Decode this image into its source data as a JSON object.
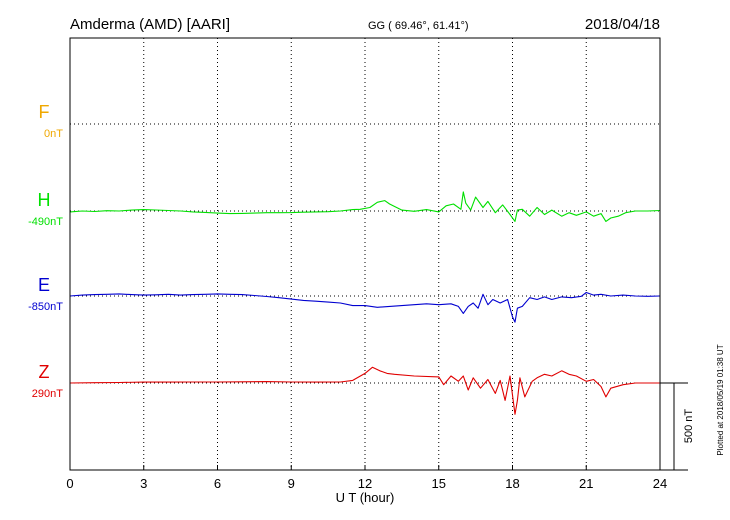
{
  "header": {
    "station": "Amderma (AMD)  [AARI]",
    "coords": "GG ( 69.46°,  61.41°)",
    "date": "2018/04/18"
  },
  "side_note": "Plotted at 2018/05/19 01:38 UT",
  "scale_bar_label": "500 nT",
  "colors": {
    "F": "#f0a800",
    "H": "#00e000",
    "E": "#0000d0",
    "Z": "#e00000",
    "grid": "#000000"
  },
  "chart_data": {
    "type": "line",
    "xlabel": "U T (hour)",
    "xlim": [
      0,
      24
    ],
    "xticks": [
      0,
      3,
      6,
      9,
      12,
      15,
      18,
      21,
      24
    ],
    "scale_nT": 500,
    "series": [
      {
        "name": "F",
        "baseline_label": "0nT",
        "has_data": false,
        "x": [],
        "y": []
      },
      {
        "name": "H",
        "baseline_label": "-490nT",
        "has_data": true,
        "x": [
          0,
          0.5,
          1,
          1.5,
          2,
          2.5,
          3,
          3.5,
          4,
          4.5,
          5,
          5.5,
          6,
          6.5,
          7,
          7.5,
          8,
          8.5,
          9,
          9.5,
          10,
          10.5,
          11,
          11.5,
          11.8,
          12.2,
          12.5,
          12.8,
          13,
          13.5,
          14,
          14.5,
          15,
          15.3,
          15.6,
          15.9,
          16,
          16.1,
          16.3,
          16.5,
          16.8,
          17,
          17.3,
          17.6,
          17.9,
          18.1,
          18.2,
          18.4,
          18.7,
          19,
          19.3,
          19.6,
          20,
          20.3,
          20.6,
          21,
          21.3,
          21.6,
          21.8,
          22,
          22.3,
          22.6,
          23,
          23.5,
          24
        ],
        "y": [
          -5,
          0,
          -3,
          2,
          0,
          5,
          8,
          6,
          3,
          0,
          -5,
          -8,
          -12,
          -15,
          -14,
          -12,
          -10,
          -10,
          -9,
          -7,
          -5,
          -4,
          0,
          8,
          10,
          20,
          50,
          60,
          40,
          5,
          -2,
          8,
          -5,
          30,
          40,
          10,
          110,
          45,
          5,
          80,
          20,
          55,
          -10,
          35,
          -20,
          -60,
          5,
          10,
          -30,
          20,
          -20,
          5,
          -30,
          -10,
          -25,
          -5,
          -30,
          -15,
          -60,
          -40,
          -30,
          -10,
          0,
          0,
          3
        ]
      },
      {
        "name": "E",
        "baseline_label": "-850nT",
        "has_data": true,
        "x": [
          0,
          0.5,
          1,
          1.5,
          2,
          2.5,
          3,
          3.5,
          4,
          4.5,
          5,
          5.5,
          6,
          6.5,
          7,
          7.5,
          8,
          8.5,
          9,
          9.5,
          10,
          10.5,
          11,
          11.5,
          12,
          12.5,
          13,
          13.5,
          14,
          14.5,
          15,
          15.5,
          15.8,
          16,
          16.2,
          16.4,
          16.6,
          16.8,
          17,
          17.2,
          17.5,
          17.8,
          18,
          18.1,
          18.2,
          18.4,
          18.7,
          19,
          19.3,
          19.6,
          20,
          20.4,
          20.8,
          21,
          21.3,
          21.6,
          22,
          22.5,
          23,
          23.5,
          24
        ],
        "y": [
          0,
          5,
          8,
          10,
          12,
          8,
          5,
          7,
          10,
          5,
          8,
          10,
          12,
          10,
          8,
          3,
          -3,
          -10,
          -18,
          -25,
          -30,
          -35,
          -40,
          -55,
          -55,
          -65,
          -60,
          -55,
          -50,
          -45,
          -50,
          -45,
          -60,
          -100,
          -60,
          -40,
          -70,
          10,
          -50,
          -20,
          -40,
          -20,
          -120,
          -150,
          -70,
          -60,
          -10,
          -20,
          -5,
          -20,
          -5,
          -10,
          -2,
          20,
          5,
          10,
          0,
          5,
          0,
          -2,
          0
        ]
      },
      {
        "name": "Z",
        "baseline_label": "290nT",
        "has_data": true,
        "x": [
          0,
          1,
          2,
          3,
          4,
          5,
          6,
          7,
          8,
          9,
          10,
          11,
          11.5,
          12,
          12.3,
          12.6,
          12.9,
          13.2,
          14,
          15,
          15.2,
          15.5,
          15.8,
          16,
          16.2,
          16.4,
          16.7,
          17,
          17.3,
          17.5,
          17.7,
          17.9,
          18.1,
          18.2,
          18.3,
          18.5,
          18.8,
          19,
          19.3,
          19.6,
          20,
          20.3,
          20.6,
          21,
          21.3,
          21.6,
          21.8,
          22,
          22.5,
          23,
          24
        ],
        "y": [
          0,
          2,
          3,
          5,
          5,
          6,
          6,
          7,
          8,
          6,
          5,
          6,
          15,
          55,
          90,
          70,
          55,
          50,
          40,
          35,
          -10,
          40,
          10,
          40,
          -40,
          30,
          -30,
          20,
          -60,
          15,
          -100,
          40,
          -180,
          -100,
          30,
          -80,
          10,
          30,
          50,
          40,
          70,
          50,
          40,
          10,
          20,
          -20,
          -80,
          -30,
          -10,
          0,
          0
        ]
      }
    ]
  }
}
